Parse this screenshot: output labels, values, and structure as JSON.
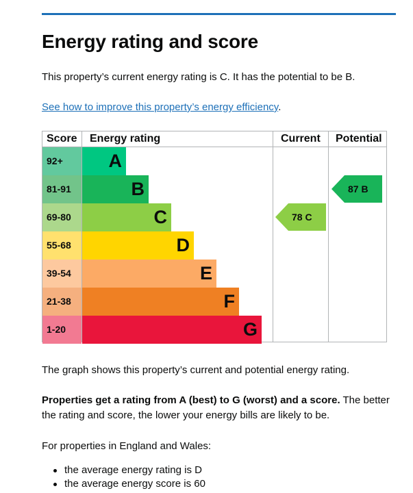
{
  "page": {
    "title": "Energy rating and score",
    "intro": "This property’s current energy rating is C. It has the potential to be B.",
    "improve_link": "See how to improve this property’s energy efficiency",
    "improve_link_suffix": "."
  },
  "epc_graph": {
    "headers": {
      "score": "Score",
      "rating": "Energy rating",
      "current": "Current",
      "potential": "Potential"
    },
    "bands": [
      {
        "score": "92+",
        "letter": "A",
        "color": "#00c781",
        "text_color": "#0b0c0c"
      },
      {
        "score": "81-91",
        "letter": "B",
        "color": "#19b459",
        "text_color": "#0b0c0c"
      },
      {
        "score": "69-80",
        "letter": "C",
        "color": "#8dce46",
        "text_color": "#0b0c0c"
      },
      {
        "score": "55-68",
        "letter": "D",
        "color": "#ffd500",
        "text_color": "#0b0c0c"
      },
      {
        "score": "39-54",
        "letter": "E",
        "color": "#fcaa65",
        "text_color": "#0b0c0c"
      },
      {
        "score": "21-38",
        "letter": "F",
        "color": "#ef8023",
        "text_color": "#0b0c0c"
      },
      {
        "score": "1-20",
        "letter": "G",
        "color": "#e9153b",
        "text_color": "#0b0c0c"
      }
    ],
    "score_cell_colors": [
      "#62c99e",
      "#72c48a",
      "#acd88c",
      "#ffe16e",
      "#fdc99f",
      "#f5b07f",
      "#f27a92"
    ],
    "current": {
      "label": "78 C",
      "band": "C",
      "color": "#8dce46"
    },
    "potential": {
      "label": "87 B",
      "band": "B",
      "color": "#19b459"
    }
  },
  "explanation": {
    "graph_caption": "The graph shows this property’s current and potential energy rating.",
    "rating_bold": "Properties get a rating from A (best) to G (worst) and a score.",
    "rating_rest": " The better the rating and score, the lower your energy bills are likely to be.",
    "region": "For properties in England and Wales:",
    "bullets": [
      "the average energy rating is D",
      "the average energy score is 60"
    ]
  }
}
